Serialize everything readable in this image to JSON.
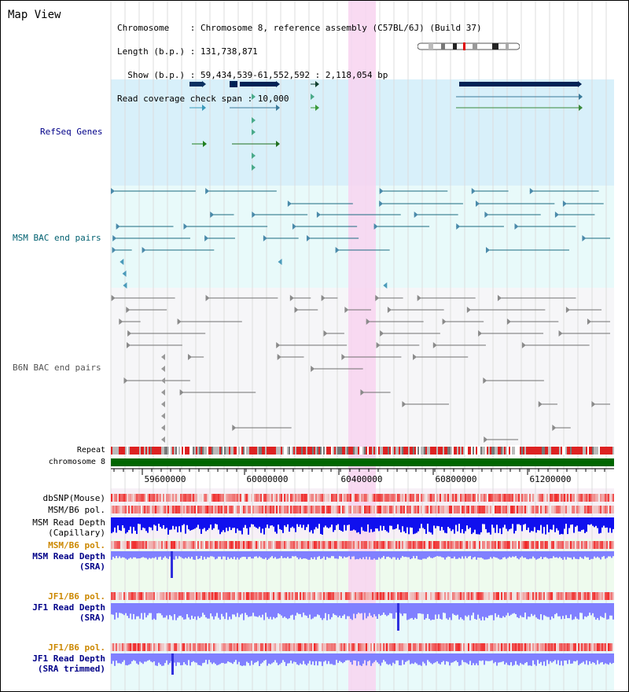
{
  "title": "Map View",
  "header": {
    "chromosome_line": "Chromosome    : Chromosome 8, reference assembly (C57BL/6J) (Build 37)",
    "length_line": "Length (b.p.) : 131,738,871",
    "show_line": "  Show (b.p.) : 59,434,539-61,552,592 : 2,118,054 bp",
    "coverage_line": "Read coverage check span : 10,000"
  },
  "tracks": {
    "refseq": "RefSeq Genes",
    "msm_bac": "MSM BAC end pairs",
    "b6n_bac": "B6N BAC end pairs",
    "repeat": "Repeat",
    "chromosome": "chromosome 8",
    "dbsnp": "dbSNP(Mouse)",
    "msm_b6_pol_1": "MSM/B6 pol.",
    "msm_depth_cap_1": "MSM Read Depth",
    "msm_depth_cap_2": "(Capillary)",
    "msm_b6_pol_2": "MSM/B6 pol.",
    "msm_depth_sra_1": "MSM Read Depth",
    "msm_depth_sra_2": "(SRA)",
    "jf1_pol_1": "JF1/B6 pol.",
    "jf1_depth_sra_1": "JF1 Read Depth",
    "jf1_depth_sra_2": "(SRA)",
    "jf1_pol_2": "JF1/B6 pol.",
    "jf1_depth_trim_1": "JF1 Read Depth",
    "jf1_depth_trim_2": "(SRA trimmed)"
  },
  "ruler": {
    "ticks": [
      "59600000",
      "60000000",
      "60400000",
      "60800000",
      "61200000"
    ]
  },
  "colors": {
    "navy_label": "#000088",
    "teal_label": "#006070",
    "orange_label": "#cc8800",
    "refseq_bg": "#d8f0fa",
    "bac_bg": "#e8fafa",
    "highlight": "#f8d4f0",
    "chromosome_bar": "#006600",
    "depth_capillary": "#1010ee",
    "depth_sra": "#8080ff"
  }
}
